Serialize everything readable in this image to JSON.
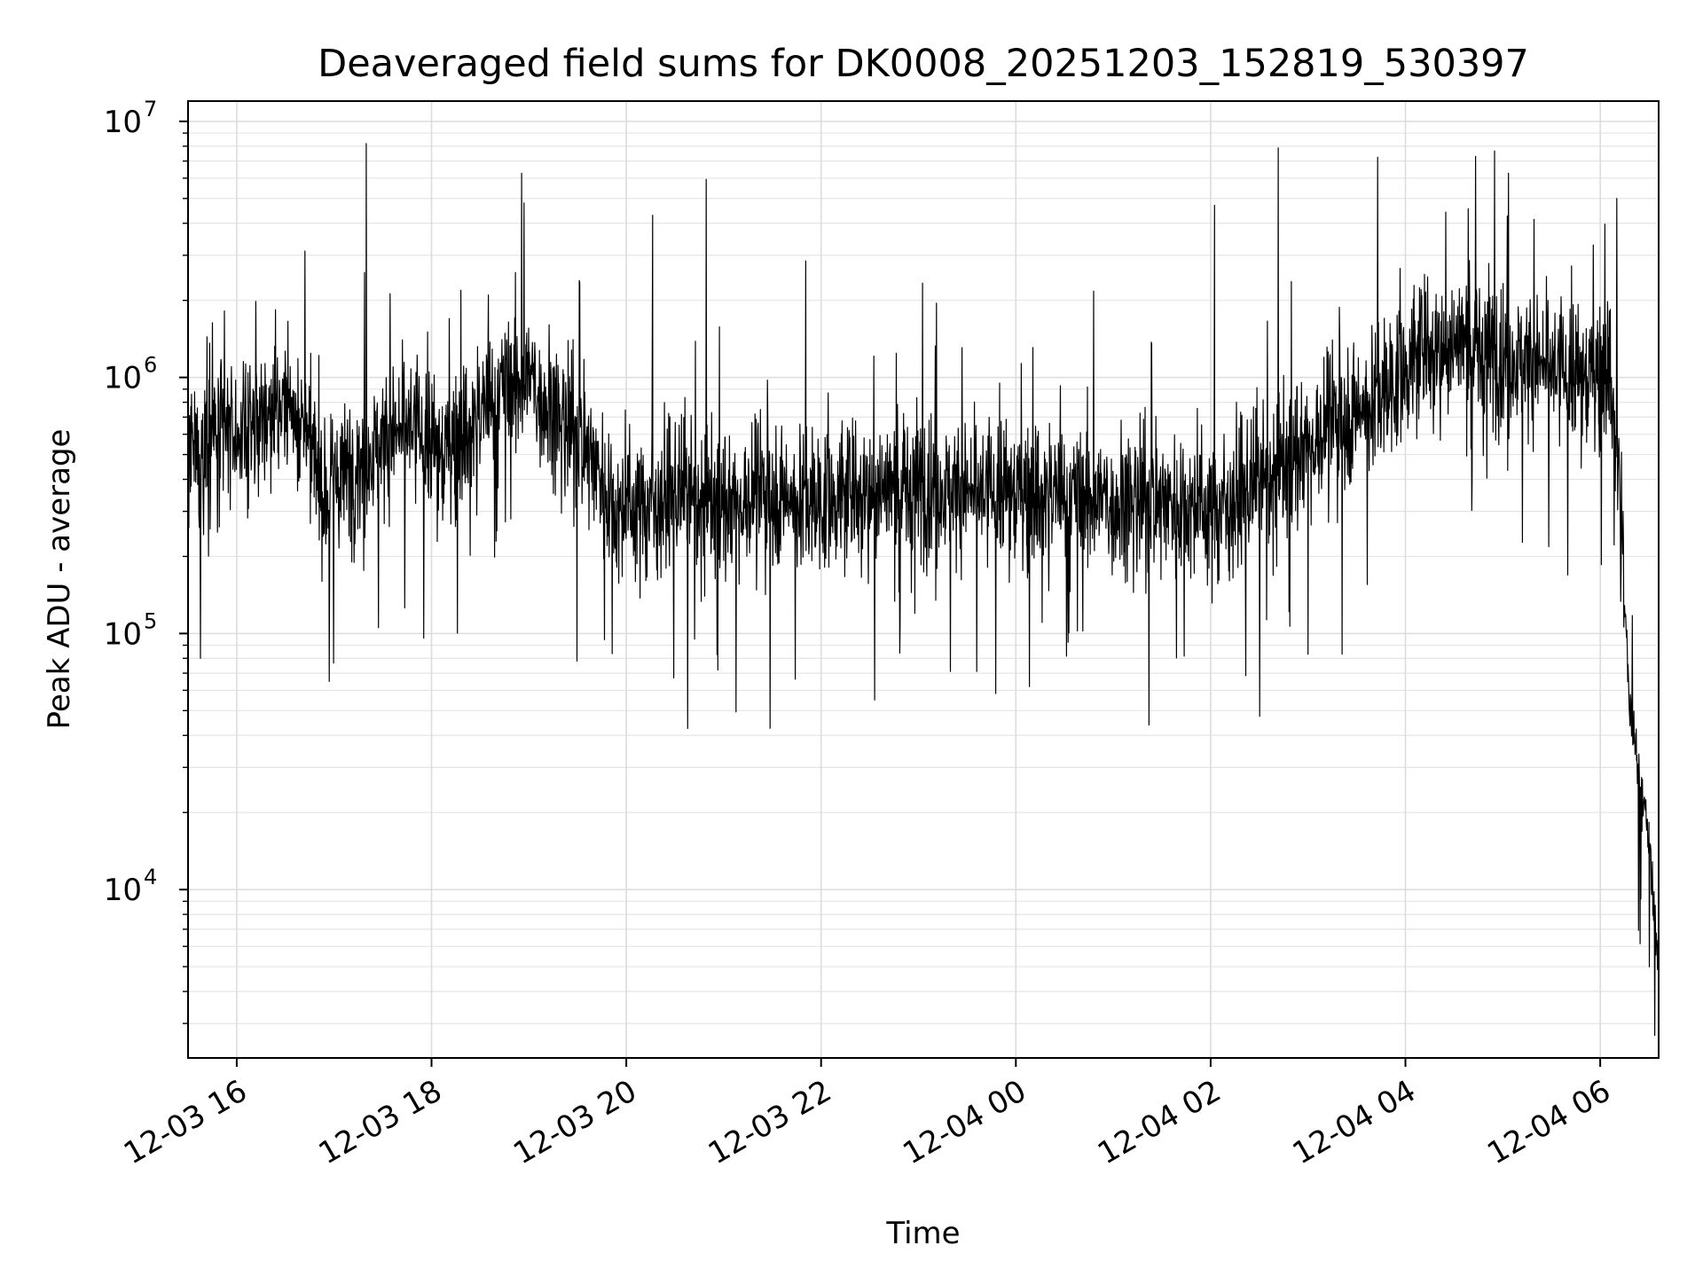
{
  "chart_data": {
    "type": "line",
    "title": "Deaveraged field sums for DK0008_20251203_152819_530397",
    "xlabel": "Time",
    "ylabel": "Peak ADU - average",
    "yscale": "log",
    "ylim": [
      2200,
      12000000
    ],
    "xlim_hours": [
      -0.5,
      14.6
    ],
    "grid": true,
    "line_color": "#000000",
    "x_ticks": [
      {
        "hour": 0,
        "label": "12-03 16"
      },
      {
        "hour": 2,
        "label": "12-03 18"
      },
      {
        "hour": 4,
        "label": "12-03 20"
      },
      {
        "hour": 6,
        "label": "12-03 22"
      },
      {
        "hour": 8,
        "label": "12-04 00"
      },
      {
        "hour": 10,
        "label": "12-04 02"
      },
      {
        "hour": 12,
        "label": "12-04 04"
      },
      {
        "hour": 14,
        "label": "12-04 06"
      }
    ],
    "y_ticks": [
      {
        "value": 10000,
        "base": "10",
        "exp": "4"
      },
      {
        "value": 100000,
        "base": "10",
        "exp": "5"
      },
      {
        "value": 1000000,
        "base": "10",
        "exp": "6"
      },
      {
        "value": 10000000,
        "base": "10",
        "exp": "7"
      }
    ],
    "series": [
      {
        "name": "Deaveraged field sum",
        "trend_hours": [
          -0.5,
          -0.3,
          0.0,
          0.3,
          0.6,
          0.9,
          1.2,
          1.5,
          1.8,
          2.1,
          2.4,
          2.7,
          3.0,
          3.3,
          3.6,
          3.9,
          4.2,
          4.5,
          5.0,
          5.5,
          6.0,
          6.5,
          7.0,
          7.5,
          8.0,
          8.5,
          9.0,
          9.5,
          10.0,
          10.5,
          11.0,
          11.4,
          11.8,
          12.2,
          12.6,
          13.0,
          13.4,
          13.8,
          14.1,
          14.2,
          14.3,
          14.4,
          14.5,
          14.6
        ],
        "trend_values": [
          450000,
          550000,
          600000,
          700000,
          800000,
          350000,
          450000,
          550000,
          650000,
          500000,
          650000,
          900000,
          1000000,
          700000,
          550000,
          300000,
          320000,
          350000,
          320000,
          350000,
          330000,
          370000,
          380000,
          350000,
          360000,
          350000,
          330000,
          340000,
          300000,
          380000,
          550000,
          700000,
          900000,
          1300000,
          1400000,
          1200000,
          1100000,
          1000000,
          1100000,
          400000,
          50000,
          30000,
          15000,
          5000
        ],
        "highlighted_peaks": [
          {
            "hour": 1.33,
            "value": 8200000
          },
          {
            "hour": 12.72,
            "value": 7300000
          },
          {
            "hour": 14.17,
            "value": 5000000
          },
          {
            "hour": 2.95,
            "value": 4800000
          },
          {
            "hour": 4.27,
            "value": 4300000
          },
          {
            "hour": 10.04,
            "value": 4700000
          }
        ],
        "highlighted_troughs": [
          {
            "hour": 0.95,
            "value": 65000
          },
          {
            "hour": 6.55,
            "value": 55000
          },
          {
            "hour": 14.62,
            "value": 3800
          }
        ]
      }
    ]
  }
}
